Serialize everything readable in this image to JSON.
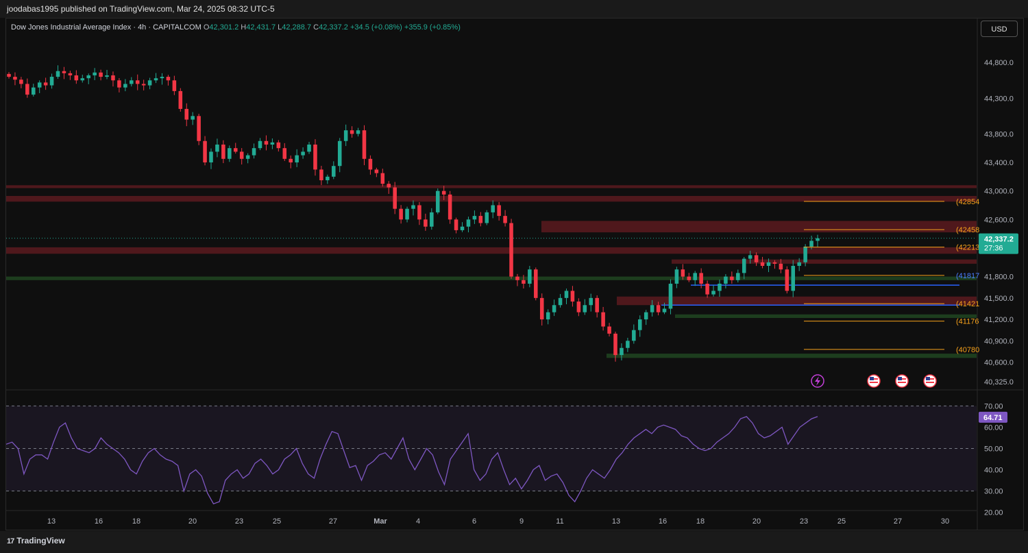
{
  "header": {
    "publisher": "joodabas1995 published on TradingView.com, Mar 24, 2025 08:32 UTC-5"
  },
  "legend": {
    "symbol": "Dow Jones Industrial Average Index · 4h · CAPITALCOM",
    "o_label": "O",
    "o_value": "42,301.2",
    "h_label": "H",
    "h_value": "42,431.7",
    "l_label": "L",
    "l_value": "42,288.7",
    "c_label": "C",
    "c_value": "42,337.2",
    "change": "+34.5 (+0.08%)",
    "change2": "+355.9 (+0.85%)"
  },
  "currency_button": "USD",
  "branding": {
    "logo_text": "TradingView",
    "logo_mark": "17"
  },
  "colors": {
    "bull": "#22ab94",
    "bear": "#f23645",
    "resistance_zone": "#5b1a1f",
    "support_zone": "#1f4220",
    "fib_line": "#f7a21b",
    "blue_line": "#2962ff",
    "rsi_line": "#7e57c2",
    "price_label_bg": "#22ab94",
    "rsi_label_bg": "#7e57c2"
  },
  "chart_data": [
    {
      "type": "candlestick",
      "timeframe": "4h",
      "price_axis": {
        "ticks": [
          "44,800.0",
          "44,300.0",
          "43,800.0",
          "43,400.0",
          "43,000.0",
          "42,600.0",
          "41,800.0",
          "41,500.0",
          "41,200.0",
          "40,900.0",
          "40,600.0",
          "40,325.0"
        ],
        "range": [
          40250,
          45100
        ]
      },
      "time_axis": {
        "ticks": [
          "13",
          "16",
          "18",
          "20",
          "23",
          "25",
          "27",
          "Mar",
          "4",
          "6",
          "9",
          "11",
          "13",
          "16",
          "18",
          "20",
          "23",
          "25",
          "27",
          "30"
        ]
      },
      "last_price": {
        "value": "42,337.2",
        "countdown": "27:36"
      },
      "fib_levels": [
        {
          "value": 42854,
          "label": "(42854"
        },
        {
          "value": 42458,
          "label": "(42458"
        },
        {
          "value": 42213,
          "label": "(42213"
        },
        {
          "value": 41817,
          "label": "(41817"
        },
        {
          "value": 41421,
          "label": "(41421"
        },
        {
          "value": 41176,
          "label": "(41176"
        },
        {
          "value": 40780,
          "label": "(40780"
        }
      ],
      "resistance_zones": [
        [
          43040,
          43080
        ],
        [
          42850,
          42930
        ],
        [
          42420,
          42580
        ],
        [
          42120,
          42210
        ],
        [
          41980,
          42040
        ],
        [
          41400,
          41520
        ]
      ],
      "support_zones": [
        [
          41750,
          41800
        ],
        [
          41220,
          41270
        ],
        [
          40660,
          40720
        ]
      ],
      "blue_lines": [
        41680,
        41400
      ],
      "closes": [
        44600,
        44560,
        44500,
        44350,
        44450,
        44520,
        44480,
        44600,
        44680,
        44650,
        44620,
        44550,
        44580,
        44620,
        44660,
        44600,
        44620,
        44550,
        44450,
        44500,
        44550,
        44500,
        44480,
        44550,
        44580,
        44600,
        44550,
        44400,
        44150,
        44000,
        44050,
        43700,
        43400,
        43550,
        43650,
        43450,
        43600,
        43550,
        43450,
        43500,
        43600,
        43700,
        43650,
        43680,
        43600,
        43450,
        43400,
        43500,
        43550,
        43650,
        43300,
        43150,
        43200,
        43350,
        43700,
        43850,
        43800,
        43850,
        43450,
        43300,
        43250,
        43100,
        43050,
        42750,
        42600,
        42750,
        42800,
        42600,
        42500,
        42700,
        43000,
        42950,
        42600,
        42450,
        42500,
        42600,
        42650,
        42550,
        42700,
        42800,
        42650,
        42550,
        41800,
        41750,
        41700,
        41900,
        41500,
        41200,
        41300,
        41400,
        41500,
        41600,
        41450,
        41300,
        41400,
        41500,
        41300,
        41100,
        41000,
        40700,
        40800,
        40900,
        41050,
        41200,
        41300,
        41400,
        41300,
        41350,
        41700,
        41900,
        41800,
        41750,
        41850,
        41700,
        41550,
        41600,
        41700,
        41800,
        41750,
        41850,
        42050,
        42100,
        42000,
        41950,
        42000,
        41980,
        41900,
        41600,
        41950,
        42000,
        42220,
        42301,
        42337
      ],
      "bullish_candle_count": 70,
      "bearish_candle_count": 65
    },
    {
      "type": "line",
      "series": [
        {
          "name": "",
          "last_value": "64.71"
        }
      ],
      "y_axis": {
        "ticks": [
          "70.00",
          "60.00",
          "50.00",
          "40.00",
          "30.00",
          "20.00"
        ],
        "range": [
          16,
          74
        ]
      },
      "reference_levels": [
        70,
        50,
        30
      ],
      "values": [
        52,
        53,
        50,
        38,
        45,
        47,
        47,
        45,
        53,
        60,
        62,
        55,
        50,
        49,
        48,
        50,
        55,
        52,
        50,
        48,
        45,
        40,
        38,
        44,
        48,
        50,
        47,
        45,
        44,
        42,
        30,
        38,
        40,
        37,
        29,
        24,
        25,
        35,
        38,
        40,
        36,
        38,
        43,
        45,
        42,
        38,
        40,
        45,
        47,
        50,
        43,
        38,
        36,
        45,
        52,
        58,
        57,
        49,
        41,
        42,
        35,
        42,
        44,
        47,
        48,
        45,
        50,
        55,
        45,
        40,
        45,
        50,
        47,
        39,
        33,
        45,
        49,
        53,
        57,
        40,
        35,
        38,
        45,
        48,
        40,
        33,
        36,
        31,
        35,
        40,
        42,
        35,
        37,
        38,
        34,
        28,
        25,
        30,
        36,
        40,
        38,
        36,
        40,
        45,
        48,
        52,
        55,
        57,
        59,
        57,
        60,
        61,
        60,
        59,
        56,
        55,
        52,
        50,
        49,
        50,
        53,
        55,
        57,
        60,
        64,
        65,
        62,
        57,
        55,
        56,
        58,
        60,
        52,
        56,
        60,
        62,
        64,
        65
      ]
    }
  ]
}
